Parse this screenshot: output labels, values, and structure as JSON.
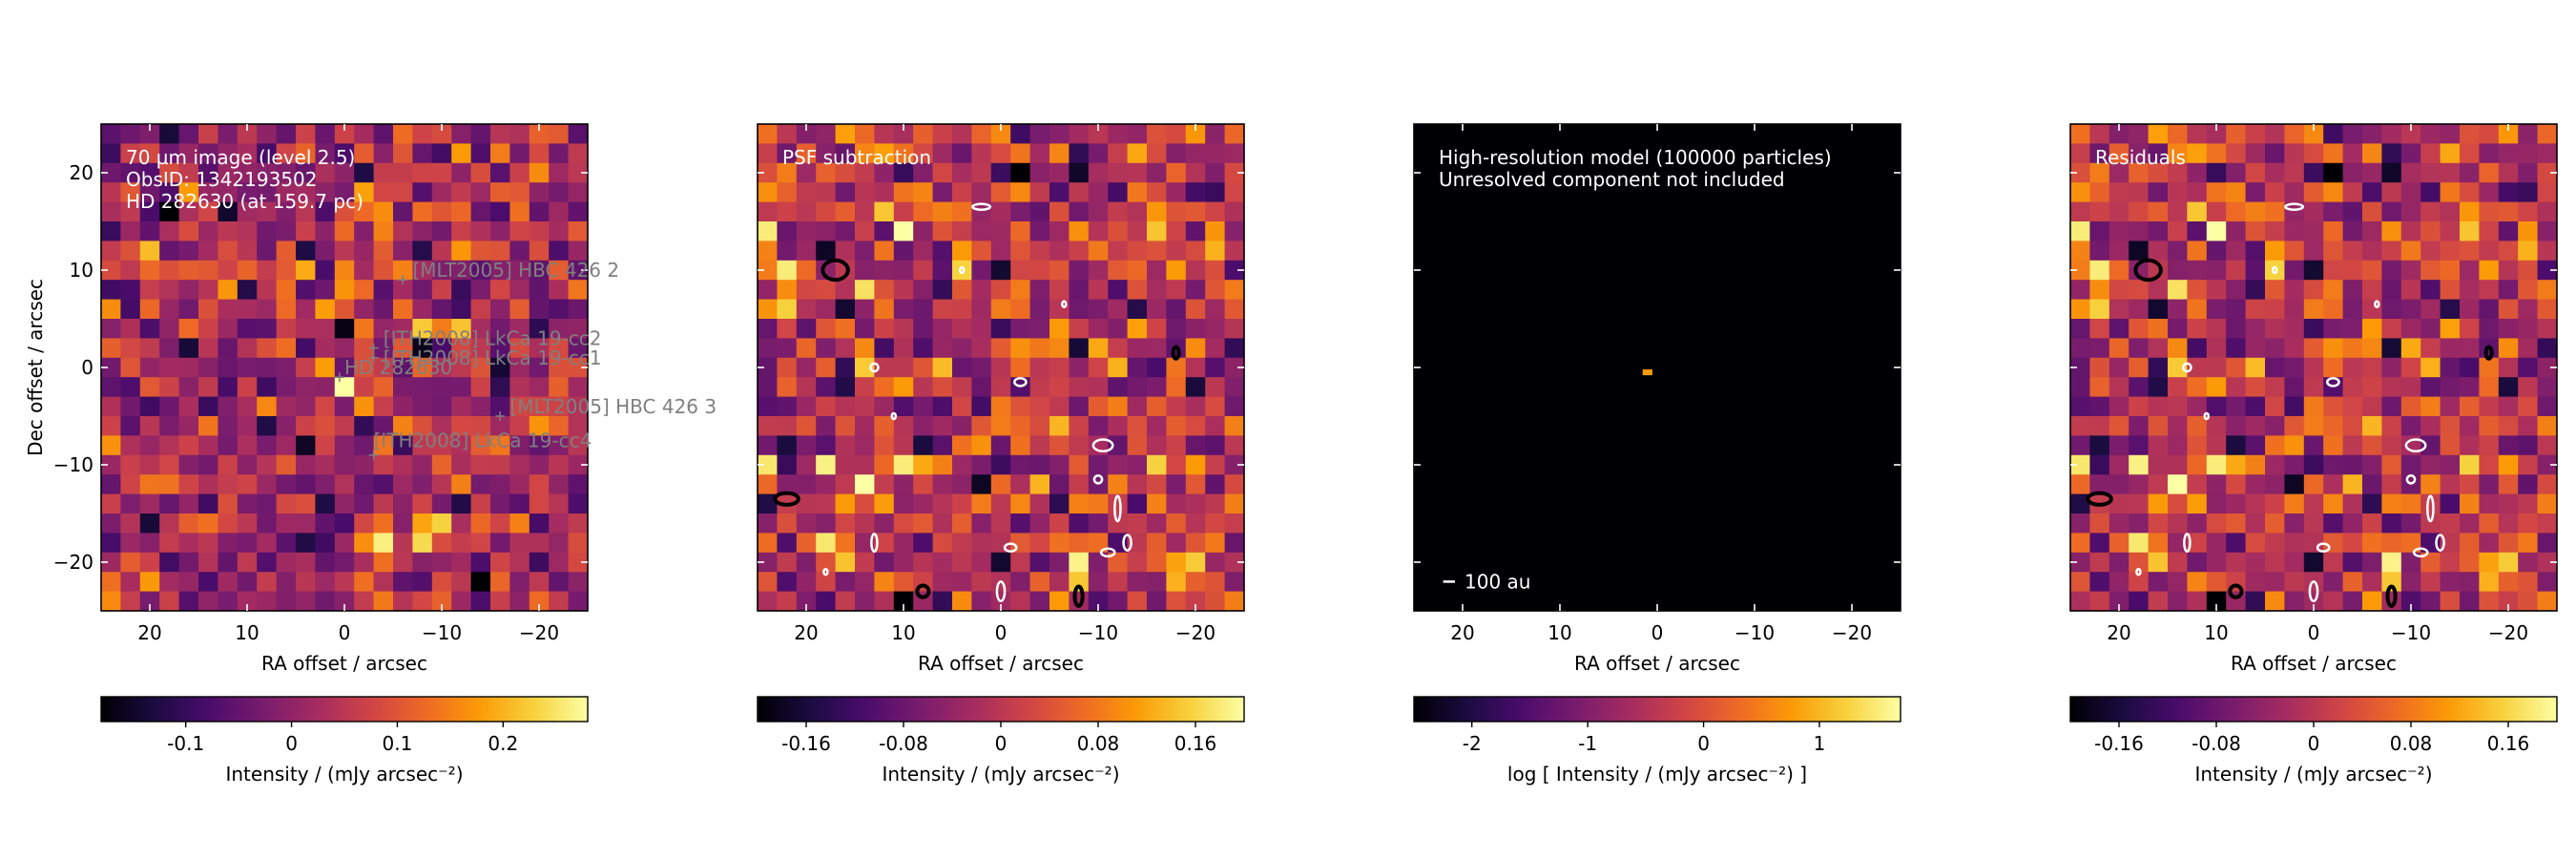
{
  "colors": {
    "cmap": [
      "#000004",
      "#1b0c41",
      "#4a0c6b",
      "#781c6d",
      "#a52c60",
      "#cf4446",
      "#ed6925",
      "#fb9b06",
      "#f7d13d",
      "#fcffa4"
    ],
    "annotation": "#808080",
    "panel_text": "#ffffff",
    "contour_positive": "#000000",
    "contour_negative": "#ffffff"
  },
  "chart_data": [
    {
      "id": "panel1",
      "type": "heatmap",
      "xlabel": "RA offset / arcsec",
      "ylabel": "Dec offset / arcsec",
      "xlim": [
        25,
        -25
      ],
      "ylim": [
        -25,
        25
      ],
      "xticks": [
        20,
        10,
        0,
        -10,
        -20
      ],
      "xtick_labels": [
        "20",
        "10",
        "0",
        "−10",
        "−20"
      ],
      "yticks": [
        20,
        10,
        0,
        -10,
        -20
      ],
      "ytick_labels": [
        "20",
        "10",
        "0",
        "−10",
        "−20"
      ],
      "grid_size": 25,
      "info_lines": [
        "70 µm image (level 2.5)",
        "ObsID: 1342193502",
        "HD 282630 (at 159.7 pc)"
      ],
      "noise": {
        "seed": 11,
        "mean": 0.02,
        "sigma": 0.07
      },
      "bright_cells": [
        {
          "x": 0.5,
          "y": -1.0,
          "value": 0.28
        },
        {
          "x": 2.5,
          "y": 1.0,
          "value": 0.18
        }
      ],
      "colorbar": {
        "vmin": -0.18,
        "vmax": 0.28,
        "ticks": [
          -0.1,
          0,
          0.1,
          0.2
        ],
        "tick_labels": [
          "-0.1",
          "0",
          "0.1",
          "0.2"
        ],
        "label": "Intensity / (mJy arcsec⁻²)"
      },
      "sources": [
        {
          "name": "[MLT2005] HBC 426 2",
          "x": -6,
          "y": 9,
          "label_x": -7,
          "label_y": 10
        },
        {
          "name": "[ITH2008] LkCa 19-cc2",
          "x": -3,
          "y": 2,
          "label_x": -4,
          "label_y": 3
        },
        {
          "name": "[ITH2008] LkCa 19-cc1",
          "x": -3,
          "y": 1,
          "label_x": -4,
          "label_y": 1
        },
        {
          "name": "HD 282630",
          "x": 0.5,
          "y": -1,
          "label_x": 0,
          "label_y": 0
        },
        {
          "name": "[MLT2005] HBC 426 3",
          "x": -16,
          "y": -5,
          "label_x": -17,
          "label_y": -4
        },
        {
          "name": "[ITH2008] LkCa 19-cc4",
          "x": -3,
          "y": -9,
          "label_x": -3,
          "label_y": -7.5
        }
      ]
    },
    {
      "id": "panel2",
      "type": "heatmap",
      "xlabel": "RA offset / arcsec",
      "xlim": [
        25,
        -25
      ],
      "ylim": [
        -25,
        25
      ],
      "xticks": [
        20,
        10,
        0,
        -10,
        -20
      ],
      "xtick_labels": [
        "20",
        "10",
        "0",
        "−10",
        "−20"
      ],
      "grid_size": 25,
      "info_lines": [
        "PSF subtraction"
      ],
      "noise": {
        "seed": 29,
        "mean": 0.0,
        "sigma": 0.07
      },
      "colorbar": {
        "vmin": -0.2,
        "vmax": 0.2,
        "ticks": [
          -0.16,
          -0.08,
          0,
          0.08,
          0.16
        ],
        "tick_labels": [
          "-0.16",
          "-0.08",
          "0",
          "0.08",
          "0.16"
        ],
        "label": "Intensity / (mJy arcsec⁻²)"
      },
      "contours": [
        {
          "level": "positive",
          "x": 17,
          "y": 10,
          "rx": 1.3,
          "ry": 1.0
        },
        {
          "level": "positive",
          "x": 22,
          "y": -13.5,
          "rx": 1.2,
          "ry": 0.6
        },
        {
          "level": "positive",
          "x": 8,
          "y": -23,
          "rx": 0.6,
          "ry": 0.6
        },
        {
          "level": "positive",
          "x": -8,
          "y": -23.5,
          "rx": 0.4,
          "ry": 1.0
        },
        {
          "level": "positive",
          "x": -18,
          "y": 1.5,
          "rx": 0.3,
          "ry": 0.6
        },
        {
          "level": "negative",
          "x": 2,
          "y": 16.5,
          "rx": 0.9,
          "ry": 0.3
        },
        {
          "level": "negative",
          "x": 13,
          "y": 0,
          "rx": 0.4,
          "ry": 0.4
        },
        {
          "level": "negative",
          "x": -2,
          "y": -1.5,
          "rx": 0.6,
          "ry": 0.4
        },
        {
          "level": "negative",
          "x": -10.5,
          "y": -8,
          "rx": 1.0,
          "ry": 0.6
        },
        {
          "level": "negative",
          "x": -11,
          "y": -19,
          "rx": 0.7,
          "ry": 0.4
        },
        {
          "level": "negative",
          "x": -12,
          "y": -14.5,
          "rx": 0.3,
          "ry": 1.3
        },
        {
          "level": "negative",
          "x": -13,
          "y": -18,
          "rx": 0.4,
          "ry": 0.8
        },
        {
          "level": "negative",
          "x": 13,
          "y": -18,
          "rx": 0.3,
          "ry": 0.9
        },
        {
          "level": "negative",
          "x": 0,
          "y": -23,
          "rx": 0.4,
          "ry": 1.0
        },
        {
          "level": "negative",
          "x": -10,
          "y": -11.5,
          "rx": 0.4,
          "ry": 0.4
        },
        {
          "level": "negative",
          "x": -1,
          "y": -18.5,
          "rx": 0.6,
          "ry": 0.4
        },
        {
          "level": "negative",
          "x": 4,
          "y": 10,
          "rx": 0.2,
          "ry": 0.3
        },
        {
          "level": "negative",
          "x": -6.5,
          "y": 6.5,
          "rx": 0.2,
          "ry": 0.3
        },
        {
          "level": "negative",
          "x": 11,
          "y": -5,
          "rx": 0.2,
          "ry": 0.3
        },
        {
          "level": "negative",
          "x": 18,
          "y": -21,
          "rx": 0.2,
          "ry": 0.3
        }
      ]
    },
    {
      "id": "panel3",
      "type": "heatmap",
      "xlabel": "RA offset / arcsec",
      "xlim": [
        25,
        -25
      ],
      "ylim": [
        -25,
        25
      ],
      "xticks": [
        20,
        10,
        0,
        -10,
        -20
      ],
      "xtick_labels": [
        "20",
        "10",
        "0",
        "−10",
        "−20"
      ],
      "info_lines": [
        "High-resolution model (100000 particles)",
        "Unresolved component not included"
      ],
      "model_source": {
        "x": 1,
        "y": -0.5,
        "w": 1.0,
        "h": 0.6
      },
      "scalebar": {
        "label": "100 au",
        "length_arcsec": 0.63,
        "x": 22,
        "y": -22
      },
      "colorbar": {
        "vmin": -2.5,
        "vmax": 1.7,
        "ticks": [
          -2,
          -1,
          0,
          1
        ],
        "tick_labels": [
          "-2",
          "-1",
          "0",
          "1"
        ],
        "label": "log [ Intensity / (mJy arcsec⁻²) ]"
      }
    },
    {
      "id": "panel4",
      "type": "heatmap",
      "xlabel": "RA offset / arcsec",
      "xlim": [
        25,
        -25
      ],
      "ylim": [
        -25,
        25
      ],
      "xticks": [
        20,
        10,
        0,
        -10,
        -20
      ],
      "xtick_labels": [
        "20",
        "10",
        "0",
        "−10",
        "−20"
      ],
      "grid_size": 25,
      "info_lines": [
        "Residuals"
      ],
      "noise": {
        "seed": 29,
        "mean": 0.0,
        "sigma": 0.07
      },
      "colorbar": {
        "vmin": -0.2,
        "vmax": 0.2,
        "ticks": [
          -0.16,
          -0.08,
          0,
          0.08,
          0.16
        ],
        "tick_labels": [
          "-0.16",
          "-0.08",
          "0",
          "0.08",
          "0.16"
        ],
        "label": "Intensity / (mJy arcsec⁻²)"
      },
      "contours": [
        {
          "level": "positive",
          "x": 17,
          "y": 10,
          "rx": 1.3,
          "ry": 1.0
        },
        {
          "level": "positive",
          "x": 22,
          "y": -13.5,
          "rx": 1.2,
          "ry": 0.6
        },
        {
          "level": "positive",
          "x": 8,
          "y": -23,
          "rx": 0.6,
          "ry": 0.6
        },
        {
          "level": "positive",
          "x": -8,
          "y": -23.5,
          "rx": 0.4,
          "ry": 1.0
        },
        {
          "level": "positive",
          "x": -18,
          "y": 1.5,
          "rx": 0.3,
          "ry": 0.6
        },
        {
          "level": "negative",
          "x": 2,
          "y": 16.5,
          "rx": 0.9,
          "ry": 0.3
        },
        {
          "level": "negative",
          "x": 13,
          "y": 0,
          "rx": 0.4,
          "ry": 0.4
        },
        {
          "level": "negative",
          "x": -2,
          "y": -1.5,
          "rx": 0.6,
          "ry": 0.4
        },
        {
          "level": "negative",
          "x": -10.5,
          "y": -8,
          "rx": 1.0,
          "ry": 0.6
        },
        {
          "level": "negative",
          "x": -11,
          "y": -19,
          "rx": 0.7,
          "ry": 0.4
        },
        {
          "level": "negative",
          "x": -12,
          "y": -14.5,
          "rx": 0.3,
          "ry": 1.3
        },
        {
          "level": "negative",
          "x": -13,
          "y": -18,
          "rx": 0.4,
          "ry": 0.8
        },
        {
          "level": "negative",
          "x": 13,
          "y": -18,
          "rx": 0.3,
          "ry": 0.9
        },
        {
          "level": "negative",
          "x": 0,
          "y": -23,
          "rx": 0.4,
          "ry": 1.0
        },
        {
          "level": "negative",
          "x": -10,
          "y": -11.5,
          "rx": 0.4,
          "ry": 0.4
        },
        {
          "level": "negative",
          "x": -1,
          "y": -18.5,
          "rx": 0.6,
          "ry": 0.4
        },
        {
          "level": "negative",
          "x": 4,
          "y": 10,
          "rx": 0.2,
          "ry": 0.3
        },
        {
          "level": "negative",
          "x": -6.5,
          "y": 6.5,
          "rx": 0.2,
          "ry": 0.3
        },
        {
          "level": "negative",
          "x": 11,
          "y": -5,
          "rx": 0.2,
          "ry": 0.3
        },
        {
          "level": "negative",
          "x": 18,
          "y": -21,
          "rx": 0.2,
          "ry": 0.3
        }
      ]
    }
  ]
}
